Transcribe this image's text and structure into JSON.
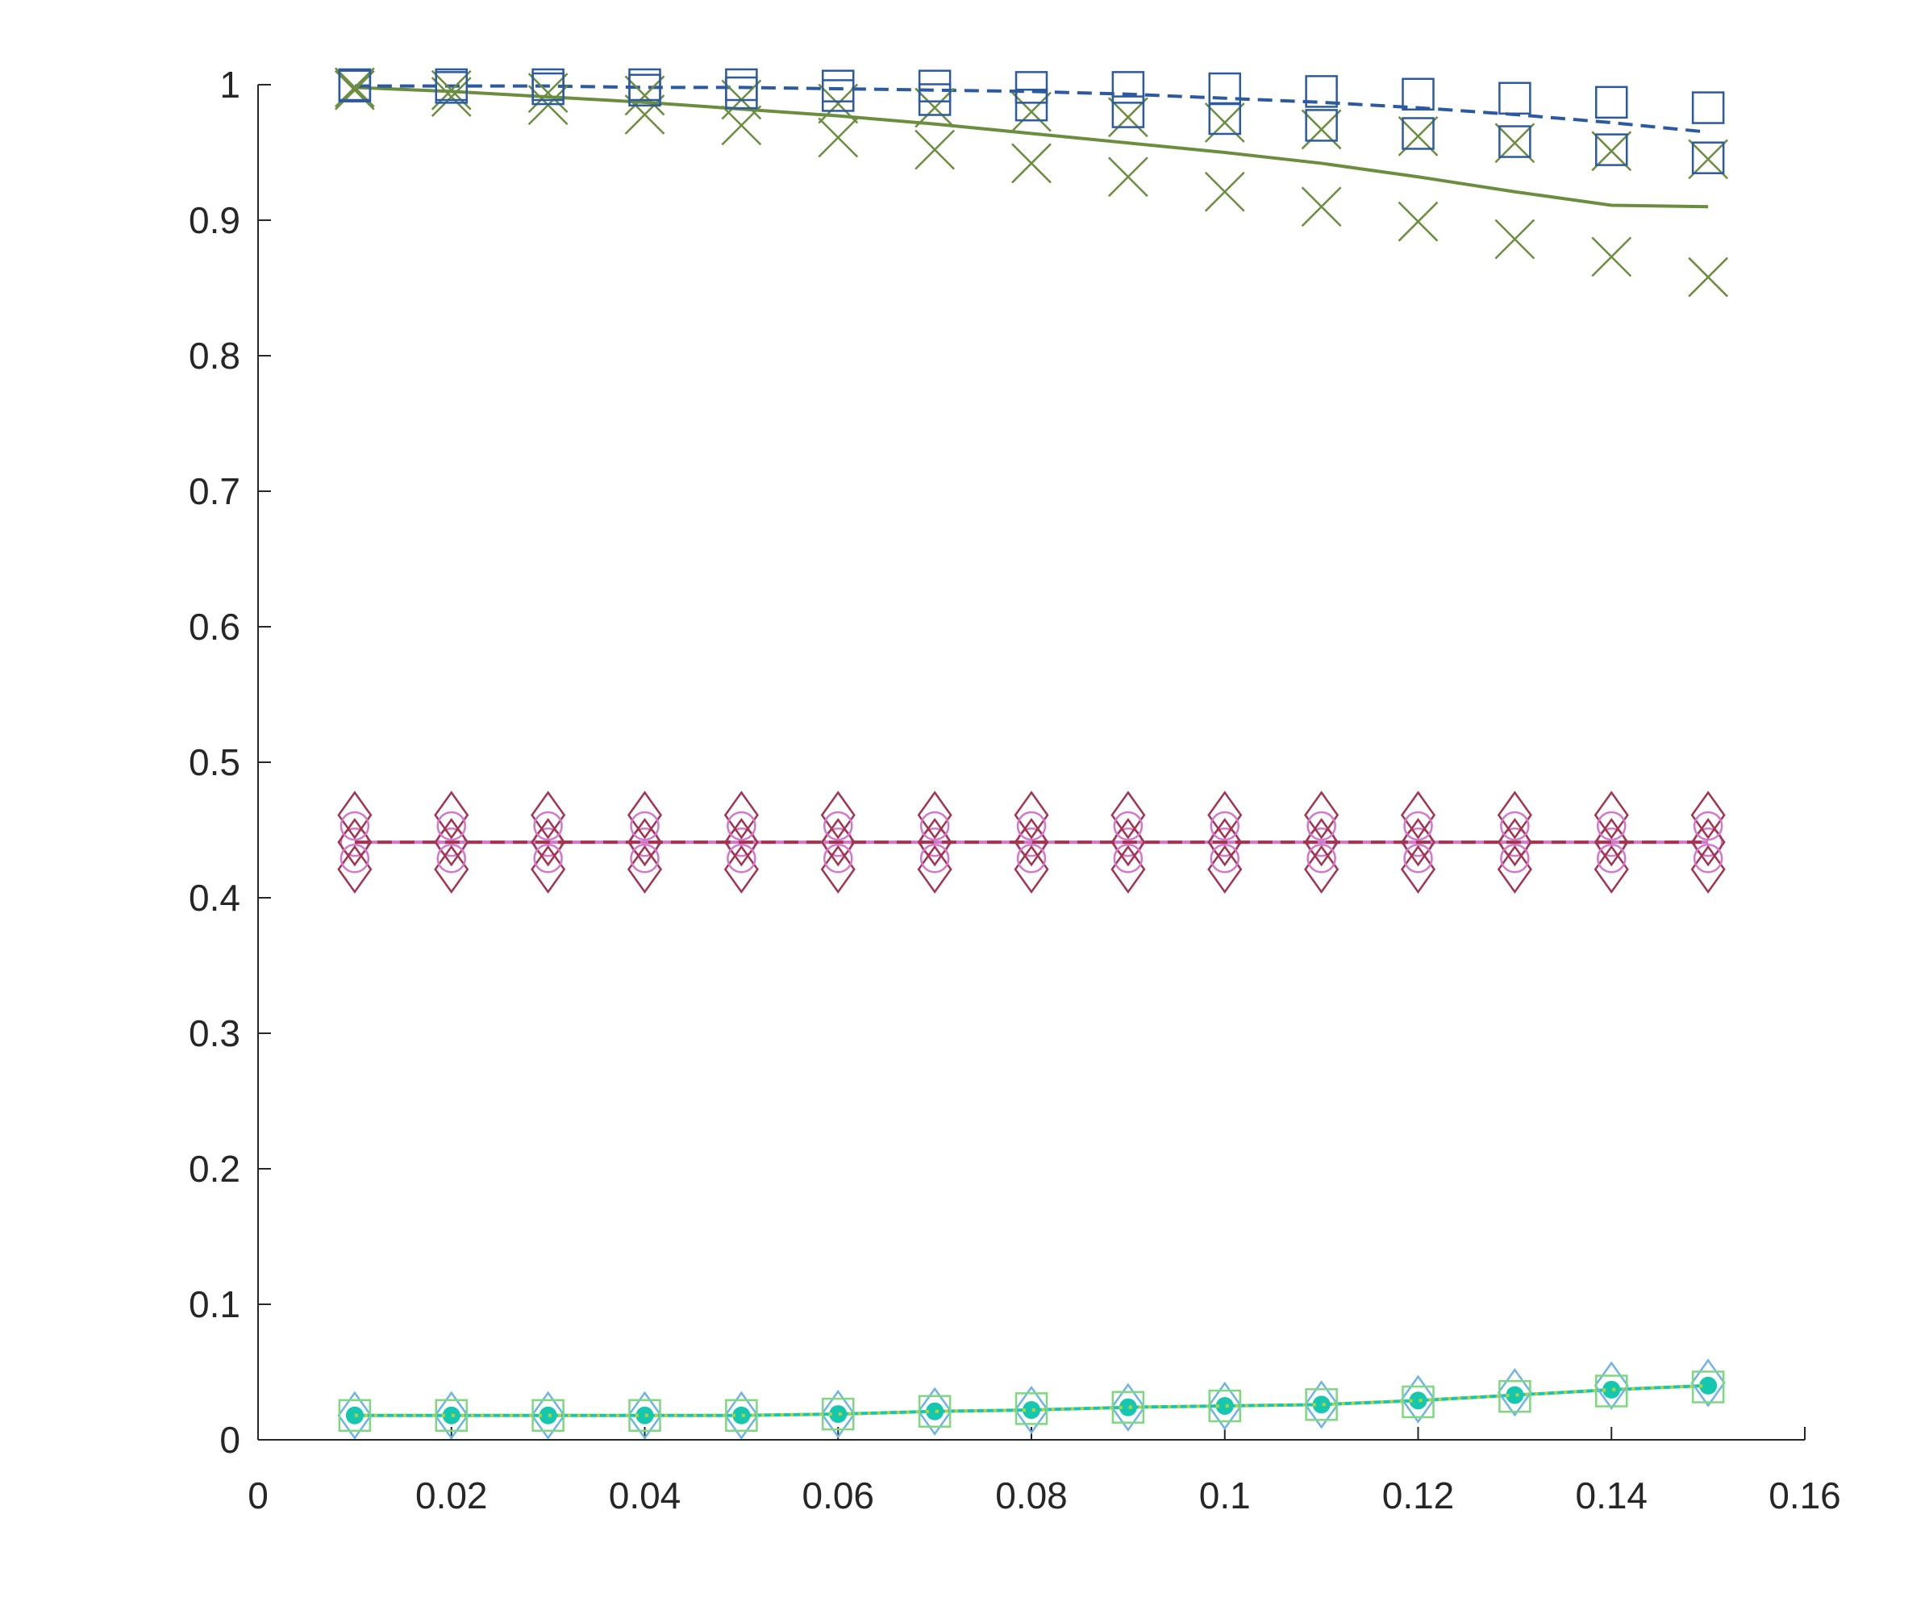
{
  "chart_data": {
    "type": "line",
    "title": "",
    "xlabel": "",
    "ylabel": "",
    "xlim": [
      0,
      0.16
    ],
    "ylim": [
      0,
      1
    ],
    "grid": false,
    "legend": "none",
    "x_ticks": [
      "0",
      "0.02",
      "0.04",
      "0.06",
      "0.08",
      "0.1",
      "0.12",
      "0.14",
      "0.16"
    ],
    "y_ticks": [
      "0",
      "0.1",
      "0.2",
      "0.3",
      "0.4",
      "0.5",
      "0.6",
      "0.7",
      "0.8",
      "0.9",
      "1"
    ],
    "x": [
      0.01,
      0.02,
      0.03,
      0.04,
      0.05,
      0.06,
      0.07,
      0.08,
      0.09,
      0.1,
      0.11,
      0.12,
      0.13,
      0.14,
      0.15
    ],
    "series": [
      {
        "line": "solid",
        "color": "#6b8e3e",
        "marker": "none",
        "values": [
          0.998,
          0.995,
          0.991,
          0.987,
          0.982,
          0.977,
          0.971,
          0.964,
          0.957,
          0.95,
          0.942,
          0.932,
          0.921,
          0.911,
          0.91
        ]
      },
      {
        "line": "dashed",
        "color": "#2c5aa0",
        "marker": "none",
        "values": [
          0.999,
          0.999,
          0.999,
          0.998,
          0.998,
          0.997,
          0.996,
          0.995,
          0.993,
          0.99,
          0.987,
          0.983,
          0.978,
          0.972,
          0.965
        ]
      },
      {
        "line": "none",
        "color": "#6b8e3e",
        "marker": "x",
        "values": [
          0.998,
          0.996,
          0.994,
          0.992,
          0.989,
          0.986,
          0.983,
          0.98,
          0.976,
          0.972,
          0.967,
          0.962,
          0.957,
          0.951,
          0.945
        ]
      },
      {
        "line": "none",
        "color": "#6b8e3e",
        "marker": "x",
        "values": [
          0.996,
          0.991,
          0.985,
          0.978,
          0.97,
          0.961,
          0.952,
          0.942,
          0.932,
          0.921,
          0.91,
          0.899,
          0.886,
          0.873,
          0.858
        ]
      },
      {
        "line": "none",
        "color": "#2c5aa0",
        "marker": "square",
        "values": [
          1.0,
          1.0,
          1.0,
          1.0,
          1.0,
          0.999,
          0.999,
          0.998,
          0.998,
          0.997,
          0.995,
          0.993,
          0.99,
          0.987,
          0.983
        ]
      },
      {
        "line": "none",
        "color": "#2c5aa0",
        "marker": "square",
        "values": [
          0.999,
          0.998,
          0.997,
          0.996,
          0.994,
          0.992,
          0.989,
          0.985,
          0.98,
          0.975,
          0.97,
          0.964,
          0.958,
          0.952,
          0.946
        ]
      },
      {
        "line": "solid",
        "color": "#d277c9",
        "marker": "circle",
        "values": [
          0.441,
          0.441,
          0.441,
          0.441,
          0.441,
          0.441,
          0.441,
          0.441,
          0.441,
          0.441,
          0.441,
          0.441,
          0.441,
          0.441,
          0.441
        ]
      },
      {
        "line": "dashed",
        "color": "#a3344f",
        "marker": "diamond",
        "values": [
          0.441,
          0.441,
          0.441,
          0.441,
          0.441,
          0.441,
          0.441,
          0.441,
          0.441,
          0.441,
          0.441,
          0.441,
          0.441,
          0.441,
          0.441
        ]
      },
      {
        "line": "none",
        "color": "#a3344f",
        "marker": "diamond",
        "values": [
          0.461,
          0.461,
          0.461,
          0.461,
          0.461,
          0.461,
          0.461,
          0.461,
          0.461,
          0.461,
          0.461,
          0.461,
          0.461,
          0.461,
          0.461
        ]
      },
      {
        "line": "none",
        "color": "#a3344f",
        "marker": "diamond",
        "values": [
          0.421,
          0.421,
          0.421,
          0.421,
          0.421,
          0.421,
          0.421,
          0.421,
          0.421,
          0.421,
          0.421,
          0.421,
          0.421,
          0.421,
          0.421
        ]
      },
      {
        "line": "none",
        "color": "#d277c9",
        "marker": "circle",
        "values": [
          0.453,
          0.453,
          0.453,
          0.453,
          0.453,
          0.453,
          0.453,
          0.453,
          0.453,
          0.453,
          0.453,
          0.453,
          0.453,
          0.453,
          0.453
        ]
      },
      {
        "line": "none",
        "color": "#d277c9",
        "marker": "circle",
        "values": [
          0.429,
          0.429,
          0.429,
          0.429,
          0.429,
          0.429,
          0.429,
          0.429,
          0.429,
          0.429,
          0.429,
          0.429,
          0.429,
          0.429,
          0.429
        ]
      },
      {
        "line": "solid",
        "color": "#16c7b0",
        "marker": "dot",
        "values": [
          0.018,
          0.018,
          0.018,
          0.018,
          0.018,
          0.019,
          0.021,
          0.022,
          0.024,
          0.025,
          0.026,
          0.029,
          0.033,
          0.037,
          0.04
        ]
      },
      {
        "line": "dotted",
        "color": "#b5d335",
        "marker": "none",
        "values": [
          0.018,
          0.018,
          0.018,
          0.018,
          0.018,
          0.019,
          0.021,
          0.022,
          0.024,
          0.025,
          0.026,
          0.029,
          0.033,
          0.037,
          0.04
        ]
      },
      {
        "line": "none",
        "color": "#6fb3e8",
        "marker": "diamond",
        "values": [
          0.018,
          0.018,
          0.018,
          0.018,
          0.018,
          0.019,
          0.021,
          0.022,
          0.024,
          0.025,
          0.026,
          0.03,
          0.035,
          0.04,
          0.042
        ]
      },
      {
        "line": "none",
        "color": "#7ed87e",
        "marker": "square",
        "values": [
          0.018,
          0.018,
          0.018,
          0.018,
          0.018,
          0.019,
          0.021,
          0.023,
          0.024,
          0.025,
          0.026,
          0.028,
          0.032,
          0.036,
          0.039
        ]
      }
    ]
  }
}
